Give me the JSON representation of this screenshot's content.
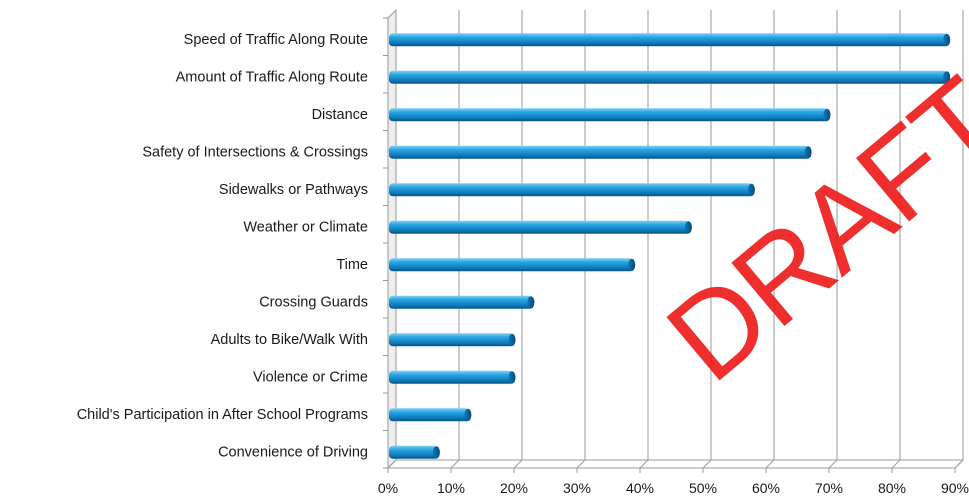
{
  "chart_data": {
    "type": "bar",
    "orientation": "horizontal",
    "categories": [
      "Speed of Traffic Along Route",
      "Amount of Traffic Along Route",
      "Distance",
      "Safety of Intersections & Crossings",
      "Sidewalks or Pathways",
      "Weather or Climate",
      "Time",
      "Crossing Guards",
      "Adults to Bike/Walk With",
      "Violence or Crime",
      "Child's Participation in After School Programs",
      "Convenience of Driving"
    ],
    "values": [
      89,
      89,
      70,
      67,
      58,
      48,
      39,
      23,
      20,
      20,
      13,
      8
    ],
    "xlim": [
      0,
      90
    ],
    "xticks": [
      "0%",
      "10%",
      "20%",
      "30%",
      "40%",
      "50%",
      "60%",
      "70%",
      "80%",
      "90%"
    ],
    "grid": true,
    "legend": "none",
    "bar_color": "#1b95d6",
    "title": "",
    "xlabel": "",
    "ylabel": ""
  },
  "watermark": {
    "text": "DRAFT",
    "color": "#ee1c1c"
  }
}
